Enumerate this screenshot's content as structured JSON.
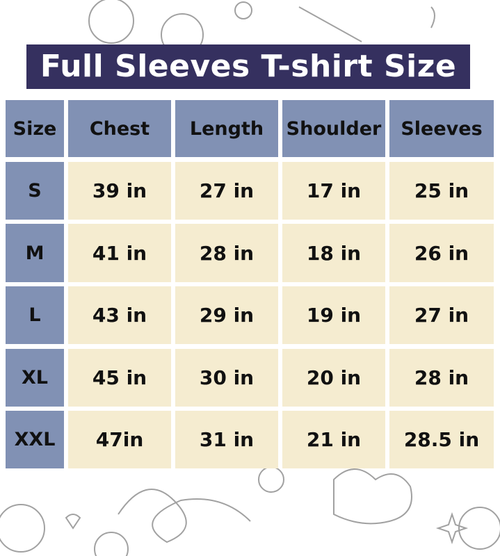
{
  "title": "Full Sleeves T-shirt Size",
  "colors": {
    "title_bg": "#35305f",
    "header_bg": "#8191b4",
    "cell_bg": "#f5ecd0"
  },
  "table": {
    "headers": [
      "Size",
      "Chest",
      "Length",
      "Shoulder",
      "Sleeves"
    ],
    "rows": [
      [
        "S",
        "39 in",
        "27 in",
        "17 in",
        "25 in"
      ],
      [
        "M",
        "41 in",
        "28 in",
        "18 in",
        "26 in"
      ],
      [
        "L",
        "43 in",
        "29 in",
        "19 in",
        "27 in"
      ],
      [
        "XL",
        "45 in",
        "30 in",
        "20 in",
        "28 in"
      ],
      [
        "XXL",
        "47in",
        "31 in",
        "21 in",
        "28.5 in"
      ]
    ]
  }
}
